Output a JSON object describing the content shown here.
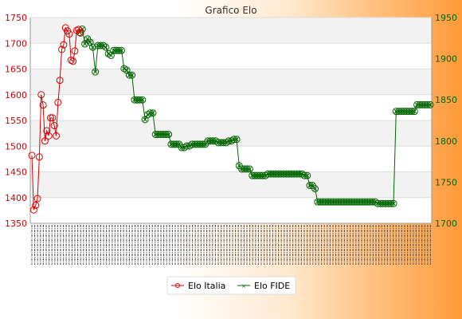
{
  "chart_data": {
    "type": "line",
    "title": "Grafico Elo",
    "left_axis": {
      "ylim": [
        1350,
        1750
      ],
      "ticks": [
        1350,
        1400,
        1450,
        1500,
        1550,
        1600,
        1650,
        1700,
        1750
      ],
      "color": "#cc0000"
    },
    "right_axis": {
      "ylim": [
        1700,
        1950
      ],
      "ticks": [
        1700,
        1750,
        1800,
        1850,
        1900,
        1950
      ],
      "color": "#006600"
    },
    "x_tick_labels_illegible": true,
    "legend_position": "bottom-center",
    "grid": true,
    "series": [
      {
        "name": "Elo Italia",
        "axis": "left",
        "color": "#dd0000",
        "values": [
          1482,
          1376,
          1385,
          1398,
          1479,
          1600,
          1580,
          1510,
          1530,
          1520,
          1555,
          1555,
          1540,
          1520,
          1585,
          1628,
          1688,
          1697,
          1730,
          1724,
          1718,
          1667,
          1665,
          1685,
          1725,
          1727,
          1720
        ]
      },
      {
        "name": "Elo FIDE",
        "axis": "right",
        "color": "#006600",
        "values": [
          1932,
          1936,
          1918,
          1924,
          1920,
          1914,
          1884,
          1916,
          1916,
          1916,
          1914,
          1906,
          1904,
          1910,
          1910,
          1910,
          1910,
          1888,
          1886,
          1880,
          1880,
          1850,
          1850,
          1850,
          1850,
          1826,
          1832,
          1834,
          1834,
          1808,
          1808,
          1808,
          1808,
          1808,
          1808,
          1796,
          1796,
          1796,
          1796,
          1792,
          1792,
          1794,
          1794,
          1796,
          1796,
          1796,
          1796,
          1796,
          1796,
          1800,
          1800,
          1800,
          1800,
          1798,
          1798,
          1798,
          1798,
          1800,
          1800,
          1802,
          1802,
          1770,
          1766,
          1766,
          1766,
          1766,
          1758,
          1758,
          1758,
          1758,
          1758,
          1758,
          1760,
          1760,
          1760,
          1760,
          1760,
          1760,
          1760,
          1760,
          1760,
          1760,
          1760,
          1760,
          1760,
          1760,
          1758,
          1758,
          1746,
          1746,
          1742,
          1726,
          1726,
          1726,
          1726,
          1726,
          1726,
          1726,
          1726,
          1726,
          1726,
          1726,
          1726,
          1726,
          1726,
          1726,
          1726,
          1726,
          1726,
          1726,
          1726,
          1726,
          1726,
          1726,
          1724,
          1724,
          1724,
          1724,
          1724,
          1724,
          1724,
          1836,
          1836,
          1836,
          1836,
          1836,
          1836,
          1836,
          1836,
          1844,
          1844,
          1844,
          1844,
          1844,
          1844
        ]
      }
    ]
  }
}
